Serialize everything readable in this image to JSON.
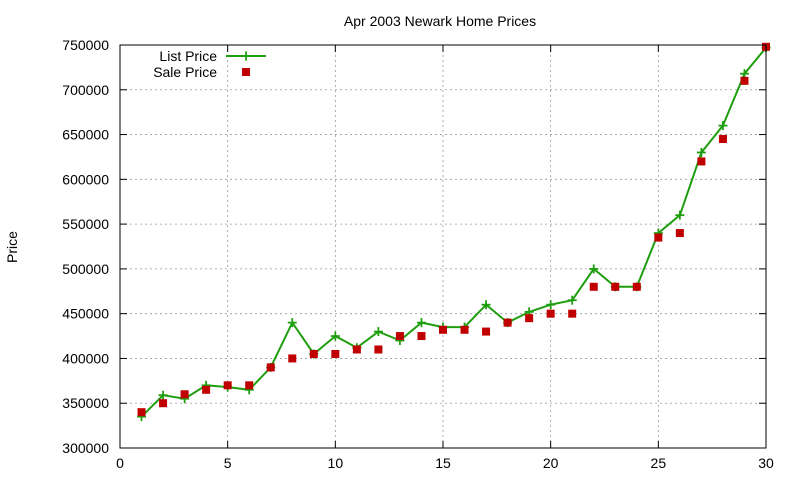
{
  "chart_data": {
    "type": "line",
    "title": "Apr 2003 Newark Home Prices",
    "xlabel": "",
    "ylabel": "Price",
    "xlim": [
      0,
      30
    ],
    "ylim": [
      300000,
      750000
    ],
    "x_ticks": [
      "0",
      "5",
      "10",
      "15",
      "20",
      "25",
      "30"
    ],
    "y_ticks": [
      "300000",
      "350000",
      "400000",
      "450000",
      "500000",
      "550000",
      "600000",
      "650000",
      "700000",
      "750000"
    ],
    "grid": true,
    "legend_position": "top-left",
    "x": [
      1,
      2,
      3,
      4,
      5,
      6,
      7,
      8,
      9,
      10,
      11,
      12,
      13,
      14,
      15,
      16,
      17,
      18,
      19,
      20,
      21,
      22,
      23,
      24,
      25,
      26,
      27,
      28,
      29,
      30
    ],
    "series": [
      {
        "name": "List Price",
        "style": "line-plus",
        "color": "#1f9e0f",
        "values": [
          335000,
          359000,
          355000,
          370000,
          368000,
          365000,
          390000,
          440000,
          405000,
          425000,
          412000,
          430000,
          420000,
          440000,
          435000,
          435000,
          460000,
          440000,
          452000,
          460000,
          465000,
          500000,
          480000,
          480000,
          540000,
          560000,
          630000,
          660000,
          718000,
          747000
        ]
      },
      {
        "name": "Sale Price",
        "style": "square-markers",
        "color": "#c00000",
        "values": [
          340000,
          350000,
          360000,
          365000,
          370000,
          370000,
          390000,
          400000,
          405000,
          405000,
          410000,
          410000,
          425000,
          425000,
          432000,
          432000,
          430000,
          440000,
          445000,
          450000,
          450000,
          480000,
          480000,
          480000,
          535000,
          540000,
          620000,
          645000,
          710000,
          748000
        ]
      }
    ]
  }
}
